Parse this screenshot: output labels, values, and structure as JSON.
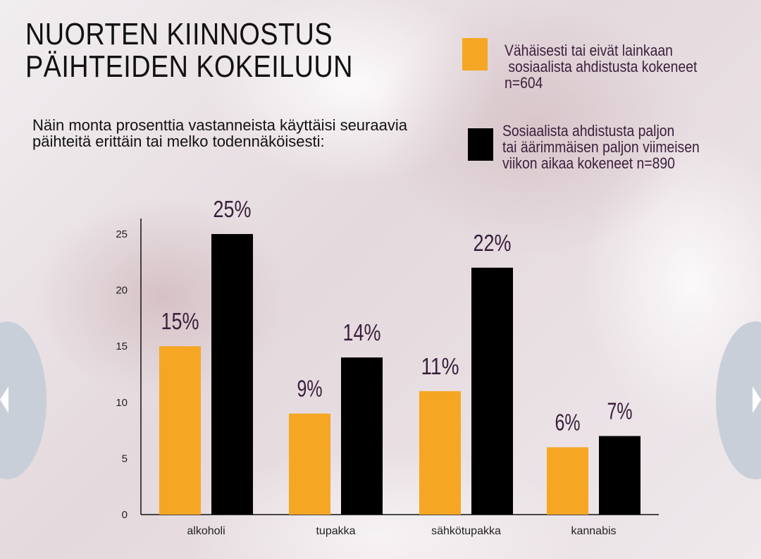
{
  "title_lines": [
    "NUORTEN KIINNOSTUS",
    "PÄIHTEIDEN KOKEILUUN"
  ],
  "subtitle": "Näin monta prosenttia vastanneista käyttäisi seuraavia päihteitä erittäin tai melko todennäköisesti:",
  "legend": [
    {
      "text": "Vähäisesti tai eivät lainkaan\n sosiaalista ahdistusta kokeneet\nn=604",
      "color": "#f5a623"
    },
    {
      "text": "Sosiaalista ahdistusta paljon\ntai äärimmäisen paljon viimeisen\nviikon aikaa kokeneet n=890",
      "color": "#000000"
    }
  ],
  "chart_data": {
    "type": "bar",
    "categories": [
      "alkoholi",
      "tupakka",
      "sähkötupakka",
      "kannabis"
    ],
    "series": [
      {
        "values": [
          15,
          9,
          11,
          6
        ],
        "labels": [
          "15%",
          "9%",
          "11%",
          "6%"
        ],
        "color": "#f5a623"
      },
      {
        "values": [
          25,
          14,
          22,
          7
        ],
        "labels": [
          "25%",
          "14%",
          "22%",
          "7%"
        ],
        "color": "#000000"
      }
    ],
    "yticks": [
      "0",
      "5",
      "10",
      "15",
      "20",
      "25"
    ],
    "ylim": [
      0,
      25
    ],
    "grid": false,
    "legend_position": "top-right"
  },
  "navigation": {
    "left_icon": "chevron-left-icon",
    "right_icon": "chevron-right-icon"
  }
}
